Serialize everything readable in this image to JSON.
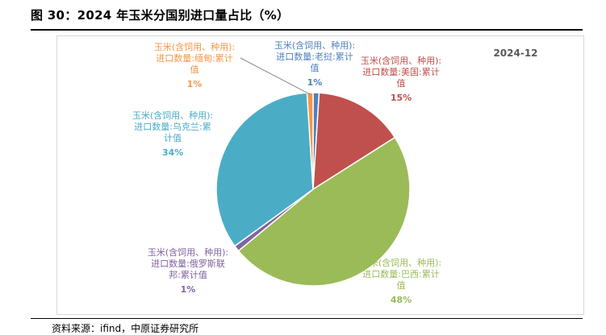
{
  "figure_title": "图 30：2024 年玉米分国别进口量占比（%）",
  "source_note": "资料来源：ifind，中原证券研究所",
  "chart_data": {
    "type": "pie",
    "date_label": "2024-12",
    "slices": [
      {
        "label_lines": [
          "玉米(含饲用、种用):",
          "进口数量:老挝:累计",
          "值"
        ],
        "pct_label": "1%",
        "value": 1,
        "color": "#4f81bd"
      },
      {
        "label_lines": [
          "玉米(含饲用、种用):",
          "进口数量:美国:累计",
          "值"
        ],
        "pct_label": "15%",
        "value": 15,
        "color": "#c0504d"
      },
      {
        "label_lines": [
          "玉米(含饲用、种用):",
          "进口数量:巴西:累计",
          "值"
        ],
        "pct_label": "48%",
        "value": 48,
        "color": "#9bbb59"
      },
      {
        "label_lines": [
          "玉米(含饲用、种用):",
          "进口数量:俄罗斯联",
          "邦:累计值"
        ],
        "pct_label": "1%",
        "value": 1,
        "color": "#8064a2"
      },
      {
        "label_lines": [
          "玉米(含饲用、种用):",
          "进口数量:乌克兰:累",
          "计值"
        ],
        "pct_label": "34%",
        "value": 34,
        "color": "#4bacc6"
      },
      {
        "label_lines": [
          "玉米(含饲用、种用):",
          "进口数量:缅甸:累计",
          "值"
        ],
        "pct_label": "1%",
        "value": 1,
        "color": "#f79646"
      }
    ]
  }
}
